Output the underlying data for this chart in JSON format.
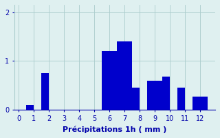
{
  "bar_lefts": [
    0.5,
    1.5,
    5.5,
    6.0,
    6.5,
    7.0,
    7.5,
    8.5,
    9.0,
    9.5,
    10.5,
    11.5,
    12.0
  ],
  "bar_heights": [
    0.1,
    0.75,
    1.2,
    1.2,
    1.4,
    1.4,
    0.45,
    0.6,
    0.6,
    0.68,
    0.45,
    0.28,
    0.28
  ],
  "bar_width": 0.5,
  "bar_color": "#0000cc",
  "bg_color": "#dff0f0",
  "grid_color": "#aacccc",
  "axis_color": "#0000aa",
  "xlabel": "Précipitations 1h ( mm )",
  "xlabel_fontsize": 8,
  "xticks": [
    0,
    1,
    2,
    3,
    4,
    5,
    6,
    7,
    8,
    9,
    10,
    11,
    12
  ],
  "yticks": [
    0,
    1,
    2
  ],
  "xlim": [
    -0.3,
    13.0
  ],
  "ylim": [
    0,
    2.15
  ],
  "tick_fontsize": 7,
  "tick_color": "#0000aa"
}
